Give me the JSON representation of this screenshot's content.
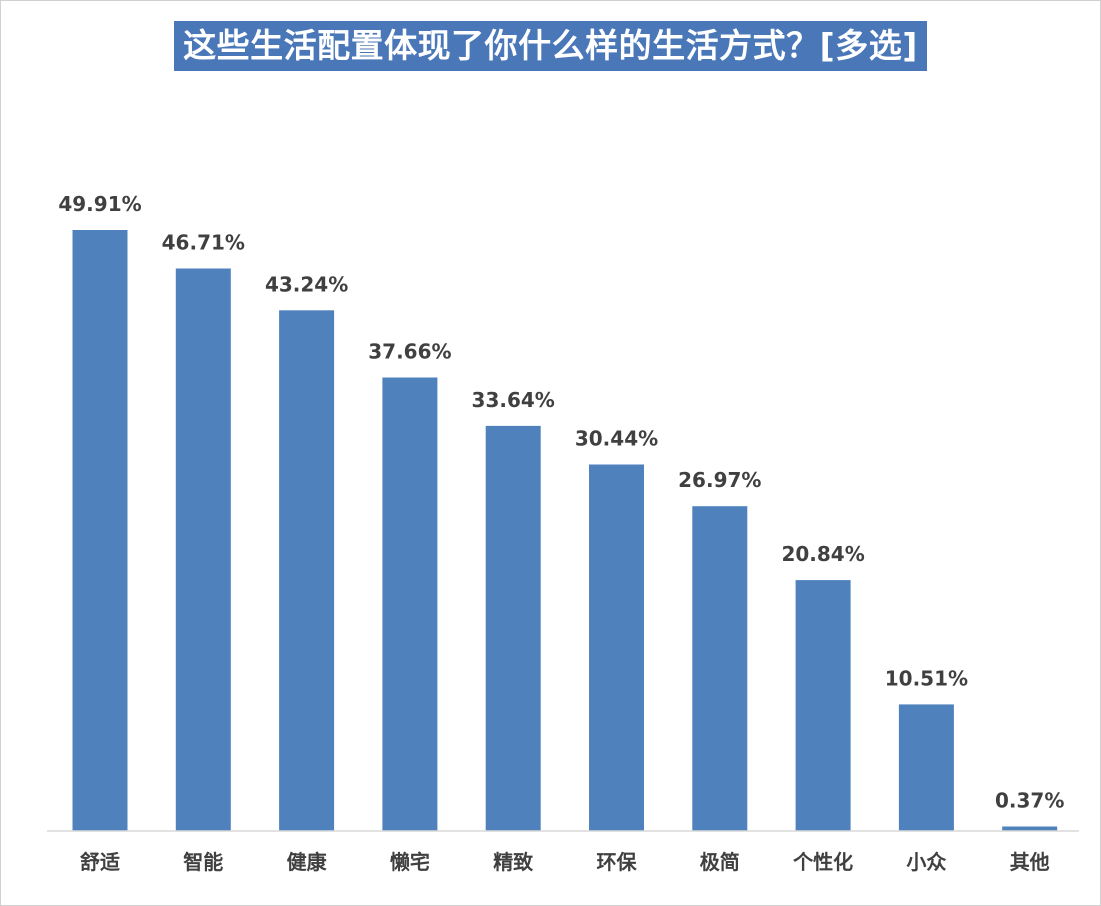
{
  "chart_data": {
    "type": "bar",
    "title": "这些生活配置体现了你什么样的生活方式？[多选]",
    "categories": [
      "舒适",
      "智能",
      "健康",
      "懒宅",
      "精致",
      "环保",
      "极简",
      "个性化",
      "小众",
      "其他"
    ],
    "values": [
      49.91,
      46.71,
      43.24,
      37.66,
      33.64,
      30.44,
      26.97,
      20.84,
      10.51,
      0.37
    ],
    "value_labels": [
      "49.91%",
      "46.71%",
      "43.24%",
      "37.66%",
      "33.64%",
      "30.44%",
      "26.97%",
      "20.84%",
      "10.51%",
      "0.37%"
    ],
    "unit": "%",
    "xlabel": "",
    "ylabel": "",
    "ylim": [
      0,
      50
    ],
    "grid": false,
    "legend": "none",
    "bar_color": "#4f81bd",
    "title_background": "#4a77b8"
  }
}
